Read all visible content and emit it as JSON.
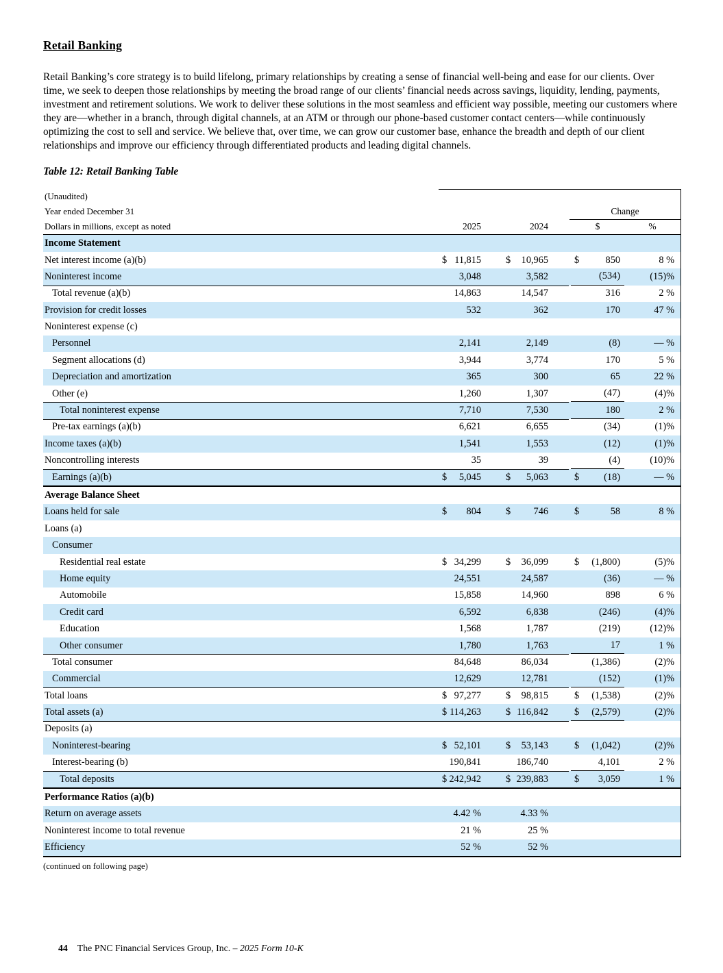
{
  "page": {
    "title": "Retail Banking",
    "intro": "Retail Banking’s core strategy is to build lifelong, primary relationships by creating a sense of financial well-being and ease for our clients. Over time, we seek to deepen those relationships by meeting the broad range of our clients’ financial needs across savings, liquidity, lending, payments, investment and retirement solutions. We work to deliver these solutions in the most seamless and efficient way possible, meeting our customers where they are—whether in a branch, through digital channels, at an ATM or through our phone-based customer contact centers—while continuously optimizing the cost to sell and service. We believe that, over time, we can grow our customer base, enhance the breadth and depth of our client relationships and improve our efficiency through differentiated products and leading digital channels.",
    "table_caption": "Table 12: Retail Banking Table",
    "continued_note": "(continued on following page)",
    "footer": {
      "page_number": "44",
      "company": "The PNC Financial Services Group, Inc. – ",
      "form": "2025 Form 10-K"
    }
  },
  "colors": {
    "row_highlight": "#cde8f8"
  },
  "table": {
    "meta": [
      "(Unaudited)",
      "Year ended December 31",
      "Dollars in millions, except as noted"
    ],
    "change_header": "Change",
    "col_headers": [
      "2025",
      "2024",
      "$",
      "%"
    ],
    "rows": [
      {
        "label": "Income Statement",
        "section": true,
        "shade": true
      },
      {
        "label": "Net interest income (a)(b)",
        "indent": 0,
        "s25": "$",
        "v25": "11,815",
        "s24": "$",
        "v24": "10,965",
        "sch": "$",
        "vch": "850",
        "pct": "8 %"
      },
      {
        "label": "Noninterest income",
        "indent": 0,
        "v25": "3,048",
        "v24": "3,582",
        "vch": "(534)",
        "pct": "(15)%",
        "shade": true,
        "rule": true
      },
      {
        "label": "Total revenue (a)(b)",
        "indent": 1,
        "v25": "14,863",
        "v24": "14,547",
        "vch": "316",
        "pct": "2 %"
      },
      {
        "label": "Provision for credit losses",
        "indent": 0,
        "v25": "532",
        "v24": "362",
        "vch": "170",
        "pct": "47 %",
        "shade": true
      },
      {
        "label": "Noninterest expense (c)",
        "indent": 0
      },
      {
        "label": "Personnel",
        "indent": 1,
        "v25": "2,141",
        "v24": "2,149",
        "vch": "(8)",
        "pct": "— %",
        "shade": true
      },
      {
        "label": "Segment allocations (d)",
        "indent": 1,
        "v25": "3,944",
        "v24": "3,774",
        "vch": "170",
        "pct": "5 %"
      },
      {
        "label": "Depreciation and amortization",
        "indent": 1,
        "v25": "365",
        "v24": "300",
        "vch": "65",
        "pct": "22 %",
        "shade": true
      },
      {
        "label": "Other (e)",
        "indent": 1,
        "v25": "1,260",
        "v24": "1,307",
        "vch": "(47)",
        "pct": "(4)%",
        "rule": true
      },
      {
        "label": "Total noninterest expense",
        "indent": 2,
        "v25": "7,710",
        "v24": "7,530",
        "vch": "180",
        "pct": "2 %",
        "shade": true,
        "rule": true
      },
      {
        "label": "Pre-tax earnings (a)(b)",
        "indent": 1,
        "v25": "6,621",
        "v24": "6,655",
        "vch": "(34)",
        "pct": "(1)%"
      },
      {
        "label": "Income taxes (a)(b)",
        "indent": 0,
        "v25": "1,541",
        "v24": "1,553",
        "vch": "(12)",
        "pct": "(1)%",
        "shade": true
      },
      {
        "label": "Noncontrolling interests",
        "indent": 0,
        "v25": "35",
        "v24": "39",
        "vch": "(4)",
        "pct": "(10)%",
        "rule": true
      },
      {
        "label": "Earnings (a)(b)",
        "indent": 1,
        "s25": "$",
        "v25": "5,045",
        "s24": "$",
        "v24": "5,063",
        "sch": "$",
        "vch": "(18)",
        "pct": "— %",
        "shade": true,
        "divider": true
      },
      {
        "label": "Average Balance Sheet",
        "section": true
      },
      {
        "label": "Loans held for sale",
        "indent": 0,
        "s25": "$",
        "v25": "804",
        "s24": "$",
        "v24": "746",
        "sch": "$",
        "vch": "58",
        "pct": "8 %",
        "shade": true
      },
      {
        "label": "Loans (a)",
        "indent": 0
      },
      {
        "label": "Consumer",
        "indent": 1,
        "shade": true
      },
      {
        "label": "Residential real estate",
        "indent": 2,
        "s25": "$",
        "v25": "34,299",
        "s24": "$",
        "v24": "36,099",
        "sch": "$",
        "vch": "(1,800)",
        "pct": "(5)%"
      },
      {
        "label": "Home equity",
        "indent": 2,
        "v25": "24,551",
        "v24": "24,587",
        "vch": "(36)",
        "pct": "— %",
        "shade": true
      },
      {
        "label": "Automobile",
        "indent": 2,
        "v25": "15,858",
        "v24": "14,960",
        "vch": "898",
        "pct": "6 %"
      },
      {
        "label": "Credit card",
        "indent": 2,
        "v25": "6,592",
        "v24": "6,838",
        "vch": "(246)",
        "pct": "(4)%",
        "shade": true
      },
      {
        "label": "Education",
        "indent": 2,
        "v25": "1,568",
        "v24": "1,787",
        "vch": "(219)",
        "pct": "(12)%"
      },
      {
        "label": "Other consumer",
        "indent": 2,
        "v25": "1,780",
        "v24": "1,763",
        "vch": "17",
        "pct": "1 %",
        "shade": true,
        "rule": true
      },
      {
        "label": "Total consumer",
        "indent": 1,
        "v25": "84,648",
        "v24": "86,034",
        "vch": "(1,386)",
        "pct": "(2)%"
      },
      {
        "label": "Commercial",
        "indent": 1,
        "v25": "12,629",
        "v24": "12,781",
        "vch": "(152)",
        "pct": "(1)%",
        "shade": true,
        "rule": true
      },
      {
        "label": "Total loans",
        "indent": 0,
        "s25": "$",
        "v25": "97,277",
        "s24": "$",
        "v24": "98,815",
        "sch": "$",
        "vch": "(1,538)",
        "pct": "(2)%"
      },
      {
        "label": "Total assets (a)",
        "indent": 0,
        "s25": "$",
        "v25": "114,263",
        "s24": "$",
        "v24": "116,842",
        "sch": "$",
        "vch": "(2,579)",
        "pct": "(2)%",
        "shade": true,
        "rule": true
      },
      {
        "label": "Deposits (a)",
        "indent": 0
      },
      {
        "label": "Noninterest-bearing",
        "indent": 1,
        "s25": "$",
        "v25": "52,101",
        "s24": "$",
        "v24": "53,143",
        "sch": "$",
        "vch": "(1,042)",
        "pct": "(2)%",
        "shade": true
      },
      {
        "label": "Interest-bearing (b)",
        "indent": 1,
        "v25": "190,841",
        "v24": "186,740",
        "vch": "4,101",
        "pct": "2 %",
        "rule": true
      },
      {
        "label": "Total deposits",
        "indent": 2,
        "s25": "$",
        "v25": "242,942",
        "s24": "$",
        "v24": "239,883",
        "sch": "$",
        "vch": "3,059",
        "pct": "1 %",
        "shade": true,
        "divider": true
      },
      {
        "label": "Performance Ratios (a)(b)",
        "section": true
      },
      {
        "label": "Return on average assets",
        "indent": 0,
        "v25": "4.42 %",
        "v24": "4.33 %",
        "shade": true
      },
      {
        "label": "Noninterest income to total revenue",
        "indent": 0,
        "v25": "21 %",
        "v24": "25 %"
      },
      {
        "label": "Efficiency",
        "indent": 0,
        "v25": "52 %",
        "v24": "52 %",
        "shade": true
      }
    ]
  }
}
